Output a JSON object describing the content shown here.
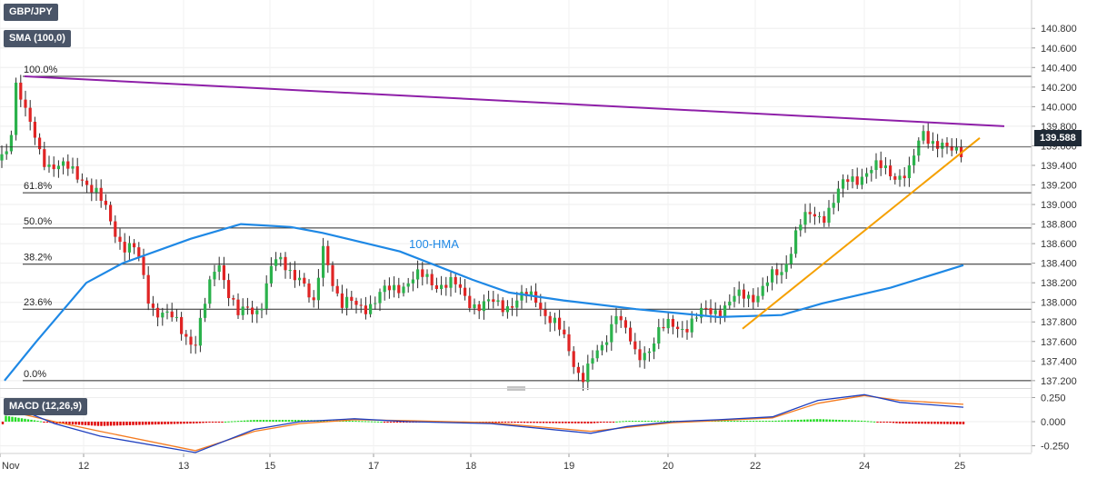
{
  "header": {
    "symbol": "GBP/JPY",
    "indicator": "SMA (100,0)",
    "macd_label": "MACD (12,26,9)"
  },
  "price_badge": "139.588",
  "annotations": {
    "hma_label": "100-HMA"
  },
  "colors": {
    "bull": "#2bb24c",
    "bear": "#e02424",
    "resistance": "#8e1fa8",
    "support": "#f5a000",
    "hma": "#1e88e5",
    "macd_line": "#1e3fbf",
    "signal_line": "#f47b20"
  },
  "chart_data": [
    {
      "type": "candlestick",
      "title": "GBP/JPY",
      "x_ticks": [
        "Nov",
        "12",
        "13",
        "15",
        "17",
        "18",
        "19",
        "20",
        "22",
        "24",
        "25"
      ],
      "y_ticks": [
        "140.800",
        "140.600",
        "140.400",
        "140.200",
        "140.000",
        "139.800",
        "139.600",
        "139.400",
        "139.200",
        "139.000",
        "138.800",
        "138.600",
        "138.400",
        "138.200",
        "138.000",
        "137.800",
        "137.600",
        "137.400",
        "137.200"
      ],
      "ylim": [
        137.18,
        140.96
      ],
      "last_price": 139.588,
      "fibonacci_levels": [
        {
          "label": "100.0%",
          "price": 140.31
        },
        {
          "label": "61.8%",
          "price": 139.12
        },
        {
          "label": "50.0%",
          "price": 138.76
        },
        {
          "label": "38.2%",
          "price": 138.39
        },
        {
          "label": "23.6%",
          "price": 137.93
        },
        {
          "label": "0.0%",
          "price": 137.2
        }
      ],
      "resistance_line": {
        "from": {
          "date": "Nov 11",
          "price": 140.31
        },
        "to": {
          "date": "Nov 25",
          "price": 139.8
        }
      },
      "support_line": {
        "from": {
          "date": "Nov 21",
          "price": 137.73
        },
        "to": {
          "date": "Nov 25",
          "price": 139.68
        }
      },
      "hma_100": [
        {
          "date": "Nov 11",
          "price": 137.2
        },
        {
          "date": "Nov 11",
          "price": 137.6
        },
        {
          "date": "Nov 12",
          "price": 138.2
        },
        {
          "date": "Nov 12",
          "price": 138.4
        },
        {
          "date": "Nov 13",
          "price": 138.65
        },
        {
          "date": "Nov 14",
          "price": 138.8
        },
        {
          "date": "Nov 15",
          "price": 138.77
        },
        {
          "date": "Nov 16",
          "price": 138.71
        },
        {
          "date": "Nov 17",
          "price": 138.52
        },
        {
          "date": "Nov 18",
          "price": 138.23
        },
        {
          "date": "Nov 18",
          "price": 138.1
        },
        {
          "date": "Nov 19",
          "price": 138.02
        },
        {
          "date": "Nov 20",
          "price": 137.93
        },
        {
          "date": "Nov 21",
          "price": 137.85
        },
        {
          "date": "Nov 22",
          "price": 137.87
        },
        {
          "date": "Nov 23",
          "price": 137.99
        },
        {
          "date": "Nov 24",
          "price": 138.15
        },
        {
          "date": "Nov 25",
          "price": 138.38
        }
      ],
      "candles_summary": {
        "high": 140.31,
        "low": 137.2,
        "last": 139.588
      }
    },
    {
      "type": "macd",
      "title": "MACD (12,26,9)",
      "y_ticks": [
        "0.250",
        "0.000",
        "-0.250"
      ],
      "ylim": [
        -0.32,
        0.32
      ],
      "macd_line": [
        {
          "date": "Nov 11",
          "value": 0.19
        },
        {
          "date": "Nov 12",
          "value": -0.02
        },
        {
          "date": "Nov 12",
          "value": -0.15
        },
        {
          "date": "Nov 13",
          "value": -0.32
        },
        {
          "date": "Nov 14",
          "value": -0.08
        },
        {
          "date": "Nov 15",
          "value": 0.0
        },
        {
          "date": "Nov 16",
          "value": 0.03
        },
        {
          "date": "Nov 17",
          "value": 0.0
        },
        {
          "date": "Nov 18",
          "value": -0.02
        },
        {
          "date": "Nov 19",
          "value": -0.12
        },
        {
          "date": "Nov 19",
          "value": -0.05
        },
        {
          "date": "Nov 20",
          "value": 0.0
        },
        {
          "date": "Nov 21",
          "value": 0.02
        },
        {
          "date": "Nov 22",
          "value": 0.05
        },
        {
          "date": "Nov 23",
          "value": 0.22
        },
        {
          "date": "Nov 24",
          "value": 0.28
        },
        {
          "date": "Nov 24",
          "value": 0.2
        },
        {
          "date": "Nov 25",
          "value": 0.15
        }
      ],
      "signal_line": [
        {
          "date": "Nov 11",
          "value": 0.12
        },
        {
          "date": "Nov 12",
          "value": 0.0
        },
        {
          "date": "Nov 12",
          "value": -0.1
        },
        {
          "date": "Nov 13",
          "value": -0.3
        },
        {
          "date": "Nov 14",
          "value": -0.1
        },
        {
          "date": "Nov 15",
          "value": -0.02
        },
        {
          "date": "Nov 16",
          "value": 0.02
        },
        {
          "date": "Nov 17",
          "value": 0.01
        },
        {
          "date": "Nov 18",
          "value": -0.01
        },
        {
          "date": "Nov 19",
          "value": -0.1
        },
        {
          "date": "Nov 19",
          "value": -0.06
        },
        {
          "date": "Nov 20",
          "value": -0.01
        },
        {
          "date": "Nov 21",
          "value": 0.01
        },
        {
          "date": "Nov 22",
          "value": 0.04
        },
        {
          "date": "Nov 23",
          "value": 0.19
        },
        {
          "date": "Nov 24",
          "value": 0.27
        },
        {
          "date": "Nov 24",
          "value": 0.22
        },
        {
          "date": "Nov 25",
          "value": 0.18
        }
      ]
    }
  ]
}
